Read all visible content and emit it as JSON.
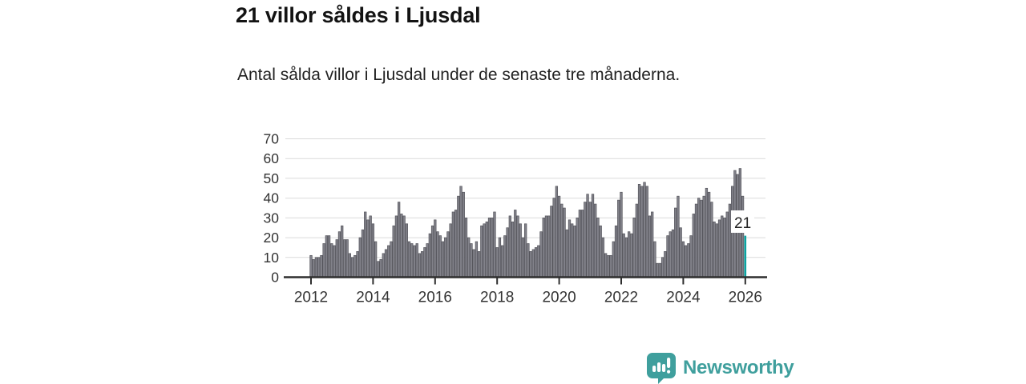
{
  "title": "21 villor såldes i Ljusdal",
  "subtitle": "Antal sålda villor i Ljusdal under de senaste tre månaderna.",
  "branding": {
    "name": "Newsworthy",
    "color": "#3f9f9d",
    "icon": "newsworthy-chart-speech-bubble-icon"
  },
  "chart_data": {
    "type": "bar",
    "title": "21 villor såldes i Ljusdal",
    "xlabel": "",
    "ylabel": "",
    "x_tick_labels": [
      "2012",
      "2014",
      "2016",
      "2018",
      "2020",
      "2022",
      "2024",
      "2026"
    ],
    "y_ticks": [
      0,
      10,
      20,
      30,
      40,
      50,
      60,
      70
    ],
    "ylim": [
      0,
      70
    ],
    "points_per_year": 12,
    "x_start": "2012-01",
    "legend": "none",
    "grid": "horizontal",
    "bar_color": "#82828a",
    "bar_border_color": "#54545b",
    "highlight_color": "#0ba3a1",
    "grid_color": "#dadada",
    "axis_color": "#2e2e2e",
    "tick_text_color": "#333333",
    "highlight_label": "21",
    "highlight_value": 21,
    "values": [
      11,
      9,
      10,
      10,
      11,
      17,
      21,
      21,
      17,
      16,
      19,
      23,
      26,
      19,
      19,
      12,
      10,
      11,
      13,
      20,
      24,
      33,
      29,
      31,
      27,
      18,
      8,
      9,
      12,
      14,
      16,
      18,
      26,
      31,
      38,
      32,
      31,
      27,
      18,
      17,
      16,
      17,
      12,
      13,
      15,
      17,
      22,
      26,
      29,
      23,
      21,
      18,
      20,
      23,
      27,
      33,
      34,
      41,
      46,
      43,
      30,
      20,
      17,
      14,
      18,
      13,
      26,
      27,
      28,
      30,
      30,
      33,
      15,
      20,
      16,
      21,
      25,
      31,
      28,
      34,
      31,
      27,
      20,
      27,
      17,
      13,
      14,
      15,
      16,
      23,
      30,
      31,
      31,
      36,
      40,
      46,
      41,
      37,
      35,
      24,
      29,
      27,
      26,
      30,
      34,
      34,
      38,
      42,
      38,
      42,
      37,
      30,
      26,
      20,
      12,
      11,
      11,
      18,
      26,
      39,
      43,
      22,
      20,
      23,
      22,
      30,
      37,
      47,
      46,
      48,
      46,
      31,
      33,
      18,
      7,
      7,
      10,
      13,
      21,
      23,
      24,
      35,
      41,
      25,
      18,
      16,
      17,
      21,
      32,
      37,
      40,
      39,
      41,
      45,
      43,
      38,
      28,
      27,
      29,
      31,
      30,
      33,
      37,
      46,
      54,
      52,
      55,
      41,
      21
    ]
  }
}
